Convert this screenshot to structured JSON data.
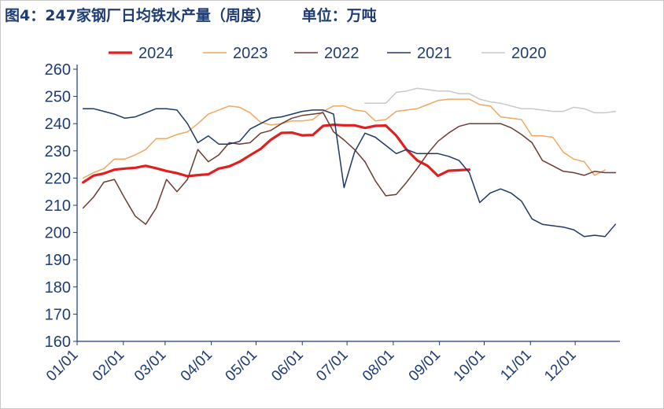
{
  "chart_data": {
    "type": "line",
    "title": "图4：247家钢厂日均铁水产量（周度）",
    "unit_label": "单位：万吨",
    "xlabel": "",
    "ylabel": "",
    "ylim": [
      160,
      260
    ],
    "yticks": [
      160,
      170,
      180,
      190,
      200,
      210,
      220,
      230,
      240,
      250,
      260
    ],
    "xlim": [
      1,
      365
    ],
    "xticks": [
      {
        "label": "01/01",
        "day": 1
      },
      {
        "label": "02/01",
        "day": 32
      },
      {
        "label": "03/01",
        "day": 60
      },
      {
        "label": "04/01",
        "day": 91
      },
      {
        "label": "05/01",
        "day": 121
      },
      {
        "label": "06/01",
        "day": 152
      },
      {
        "label": "07/01",
        "day": 182
      },
      {
        "label": "08/01",
        "day": 213
      },
      {
        "label": "09/01",
        "day": 244
      },
      {
        "label": "10/01",
        "day": 274
      },
      {
        "label": "11/01",
        "day": 305
      },
      {
        "label": "12/01",
        "day": 335
      }
    ],
    "grid": false,
    "legend_position": "top",
    "series": [
      {
        "name": "2024",
        "color": "#e02020",
        "width": 3.2,
        "x": [
          5,
          12,
          19,
          26,
          33,
          40,
          47,
          54,
          61,
          68,
          75,
          82,
          89,
          96,
          103,
          110,
          117,
          124,
          131,
          138,
          145,
          152,
          159,
          166,
          173,
          180,
          187,
          194,
          201,
          208,
          215,
          222,
          229,
          236,
          243,
          250,
          257,
          264
        ],
        "y": [
          218.4,
          220.9,
          221.7,
          223.1,
          223.5,
          223.8,
          224.5,
          223.6,
          222.6,
          221.8,
          220.7,
          221.1,
          221.4,
          223.5,
          224.3,
          226.0,
          228.4,
          230.7,
          234.1,
          236.6,
          236.7,
          235.7,
          235.8,
          239.2,
          239.6,
          239.4,
          239.4,
          238.4,
          239.2,
          239.3,
          235.6,
          230.4,
          226.5,
          224.5,
          220.8,
          222.7,
          222.9,
          223.1
        ]
      },
      {
        "name": "2023",
        "color": "#f0a860",
        "width": 1.5,
        "x": [
          5,
          12,
          19,
          26,
          33,
          40,
          47,
          54,
          61,
          68,
          75,
          82,
          89,
          96,
          103,
          110,
          117,
          124,
          131,
          138,
          145,
          152,
          159,
          166,
          173,
          180,
          187,
          194,
          201,
          208,
          215,
          222,
          229,
          236,
          243,
          250,
          257,
          264,
          271,
          278,
          285,
          292,
          299,
          306,
          313,
          320,
          327,
          334,
          341,
          348,
          355
        ],
        "y": [
          220,
          222,
          223.5,
          227,
          227,
          228.5,
          230.5,
          234.5,
          234.5,
          236,
          237,
          240,
          243.5,
          245,
          246.5,
          246,
          244,
          240.5,
          239.5,
          240,
          241,
          241,
          241.5,
          244.5,
          246.5,
          246.5,
          245,
          244.5,
          241,
          241.5,
          244.5,
          245,
          245.5,
          247,
          248.5,
          249,
          249,
          249,
          247,
          246.5,
          242.5,
          242,
          241.5,
          235.5,
          235.5,
          235,
          229.5,
          227,
          226,
          221,
          223
        ]
      },
      {
        "name": "2022",
        "color": "#6e3a32",
        "width": 1.5,
        "x": [
          5,
          12,
          19,
          26,
          33,
          40,
          47,
          54,
          61,
          68,
          75,
          82,
          89,
          96,
          103,
          110,
          117,
          124,
          131,
          138,
          145,
          152,
          159,
          166,
          173,
          180,
          187,
          194,
          201,
          208,
          215,
          222,
          229,
          236,
          243,
          250,
          257,
          264,
          271,
          278,
          285,
          292,
          299,
          306,
          313,
          320,
          327,
          334,
          341,
          348,
          355,
          362
        ],
        "y": [
          209,
          213,
          218.5,
          219.5,
          212.5,
          206,
          203,
          209,
          219.5,
          215,
          219.5,
          230.5,
          226,
          228.5,
          233,
          232.5,
          233,
          236.5,
          237.5,
          240,
          242,
          243,
          243.5,
          244,
          237,
          234,
          230.5,
          226,
          219,
          213.5,
          214,
          218.5,
          223.5,
          229,
          233.5,
          236.5,
          239,
          240,
          240,
          240,
          240,
          238.5,
          236,
          233,
          226.5,
          224.5,
          222.5,
          222,
          221,
          222.5,
          222,
          222
        ]
      },
      {
        "name": "2021",
        "color": "#1f3864",
        "width": 1.5,
        "x": [
          5,
          12,
          19,
          26,
          33,
          40,
          47,
          54,
          61,
          68,
          75,
          82,
          89,
          96,
          103,
          110,
          117,
          124,
          131,
          138,
          145,
          152,
          159,
          166,
          173,
          180,
          187,
          194,
          201,
          208,
          215,
          222,
          229,
          236,
          243,
          250,
          257,
          264,
          271,
          278,
          285,
          292,
          299,
          306,
          313,
          320,
          327,
          334,
          341,
          348,
          355,
          362
        ],
        "y": [
          245.5,
          245.5,
          244.5,
          243.5,
          242,
          242.5,
          244,
          245.5,
          245.5,
          245,
          240,
          233,
          235.5,
          232.5,
          232.5,
          233.5,
          238,
          240,
          242,
          242.5,
          243.5,
          244.5,
          245,
          245,
          243.5,
          216.5,
          229.5,
          236.5,
          235,
          232,
          229,
          230.5,
          229,
          229,
          229,
          228,
          226.5,
          222,
          211,
          214.5,
          216,
          214.5,
          211.5,
          205,
          203,
          202.5,
          202,
          201,
          198.5,
          199,
          198.5,
          203
        ]
      },
      {
        "name": "2020",
        "color": "#c8c8c8",
        "width": 1.5,
        "x": [
          194,
          201,
          208,
          215,
          222,
          229,
          236,
          243,
          250,
          257,
          264,
          271,
          278,
          285,
          292,
          299,
          306,
          313,
          320,
          327,
          334,
          341,
          348,
          355,
          362
        ],
        "y": [
          247.5,
          247.5,
          247.5,
          251.5,
          252,
          253,
          252.5,
          252,
          252,
          251,
          251,
          249,
          248,
          247.5,
          246.5,
          245.5,
          245.5,
          245,
          244.5,
          244.5,
          246,
          245.5,
          244,
          244,
          244.5
        ]
      }
    ]
  }
}
